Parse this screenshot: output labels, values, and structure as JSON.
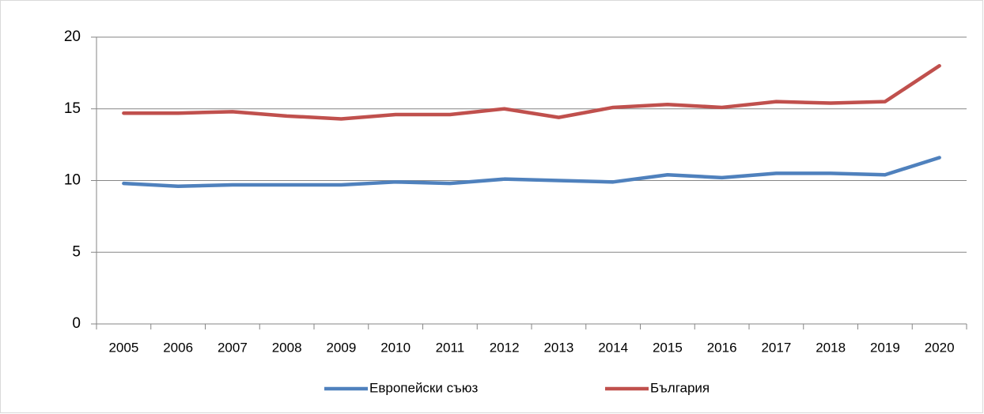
{
  "chart_data": {
    "type": "line",
    "categories": [
      "2005",
      "2006",
      "2007",
      "2008",
      "2009",
      "2010",
      "2011",
      "2012",
      "2013",
      "2014",
      "2015",
      "2016",
      "2017",
      "2018",
      "2019",
      "2020"
    ],
    "series": [
      {
        "name": "Европейски съюз",
        "color": "#4f81bd",
        "values": [
          9.8,
          9.6,
          9.7,
          9.7,
          9.7,
          9.9,
          9.8,
          10.1,
          10.0,
          9.9,
          10.4,
          10.2,
          10.5,
          10.5,
          10.4,
          11.6
        ]
      },
      {
        "name": "България",
        "color": "#c0504d",
        "values": [
          14.7,
          14.7,
          14.8,
          14.5,
          14.3,
          14.6,
          14.6,
          15.0,
          14.4,
          15.1,
          15.3,
          15.1,
          15.5,
          15.4,
          15.5,
          18.0
        ]
      }
    ],
    "ylim": [
      0,
      20
    ],
    "yticks": [
      0,
      5,
      10,
      15,
      20
    ],
    "grid": true,
    "legend": "bottom"
  }
}
